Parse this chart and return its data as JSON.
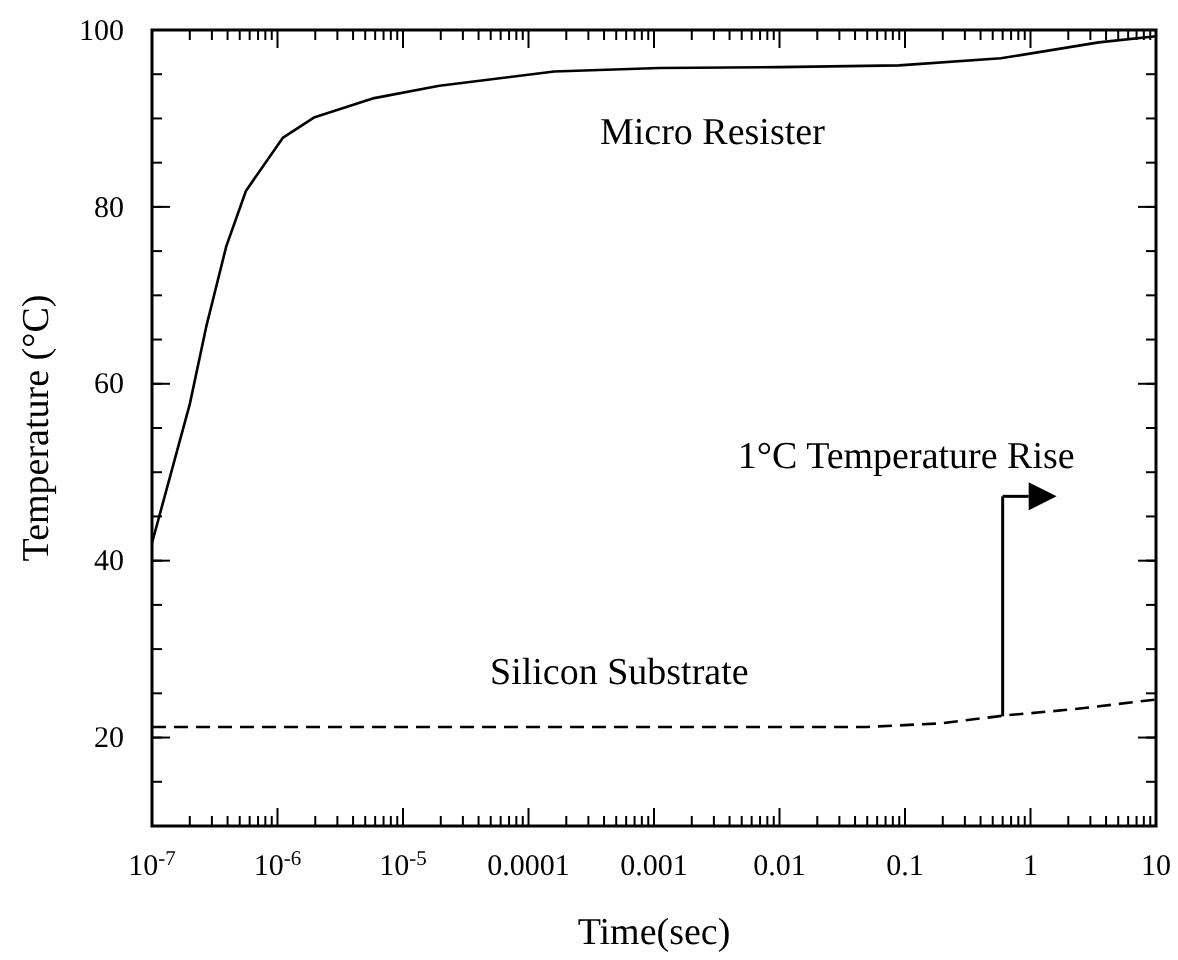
{
  "chart_data": {
    "type": "line",
    "xlabel": "Time(sec)",
    "ylabel": "Temperature (°C)",
    "log": "x",
    "xlim": [
      1e-07,
      10
    ],
    "ylim": [
      10,
      100
    ],
    "xticks": [
      {
        "value": 1e-07,
        "label": "10$^{-7}$"
      },
      {
        "value": 1e-06,
        "label": "10$^{-6}$"
      },
      {
        "value": 1e-05,
        "label": "10$^{-5}$"
      },
      {
        "value": 0.0001,
        "label": "0.0001"
      },
      {
        "value": 0.001,
        "label": "0.001"
      },
      {
        "value": 0.01,
        "label": "0.01"
      },
      {
        "value": 0.1,
        "label": "0.1"
      },
      {
        "value": 1,
        "label": "1"
      },
      {
        "value": 10,
        "label": "10"
      }
    ],
    "yticks": [
      20,
      40,
      60,
      80,
      100
    ],
    "marker": "none",
    "series": [
      {
        "name": "Micro Resister",
        "color": "#000000",
        "line_style": "solid",
        "x": [
          1e-07,
          2e-07,
          2.7e-07,
          3.9e-07,
          5.6e-07,
          1.1e-06,
          1.95e-06,
          5.9e-06,
          1.95e-05,
          0.00016,
          0.0011,
          0.01,
          0.09,
          0.58,
          3.5,
          10
        ],
        "values": [
          42,
          57.7,
          66.4,
          75.5,
          81.8,
          87.8,
          90.1,
          92.3,
          93.7,
          95.3,
          95.7,
          95.8,
          96,
          96.8,
          98.6,
          99.3
        ]
      },
      {
        "name": "Silicon Substrate",
        "color": "#000000",
        "line_style": "dashed",
        "x": [
          1e-07,
          0.001,
          0.05,
          0.19,
          0.63,
          2.2,
          10
        ],
        "values": [
          21.2,
          21.2,
          21.2,
          21.6,
          22.5,
          23.2,
          24.3
        ]
      }
    ],
    "annotations": [
      {
        "text": "1°C Temperature Rise",
        "x": 0.6,
        "y": 22.4
      }
    ]
  }
}
